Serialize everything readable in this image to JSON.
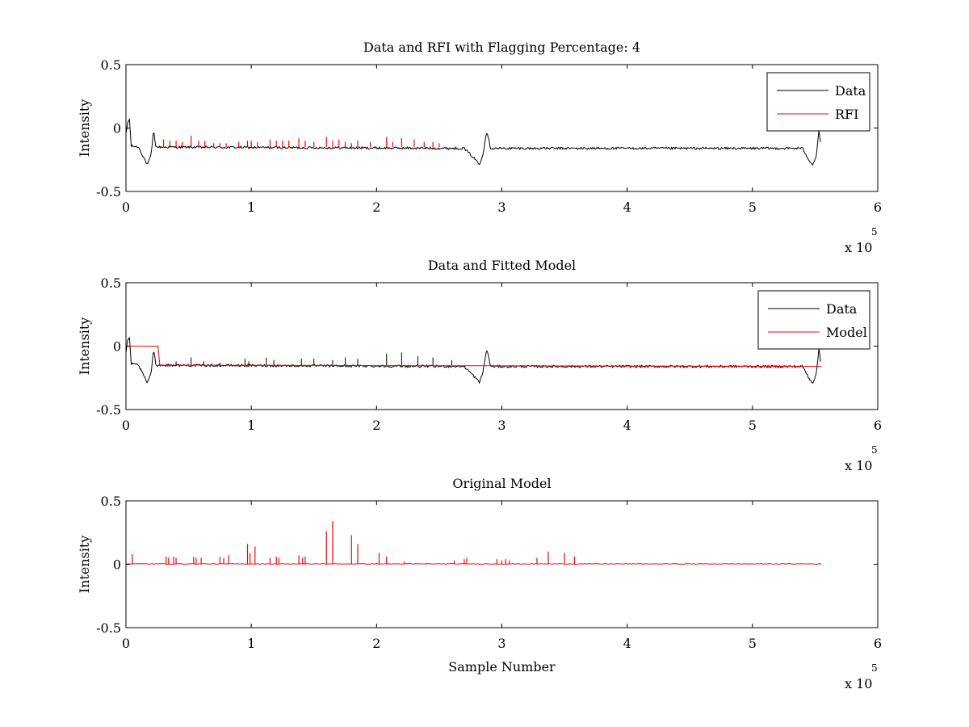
{
  "colors": {
    "data": "#000000",
    "red": "#ff0000",
    "axes": "#000000",
    "background": "#ffffff"
  },
  "axes_common": {
    "xlim": [
      0,
      600000
    ],
    "ylim": [
      -0.5,
      0.5
    ],
    "xticks": [
      0,
      1,
      2,
      3,
      4,
      5,
      6
    ],
    "yticks": [
      0.5,
      0,
      -0.5
    ],
    "ytick_labels": [
      "0.5",
      "0",
      "-0.5"
    ],
    "x_multiplier_prefix": "x 10",
    "x_multiplier_exponent": "5",
    "grid": false
  },
  "chart_data": [
    {
      "type": "line",
      "title": "Data and RFI with Flagging Percentage: 4",
      "xlabel": "",
      "ylabel": "Intensity",
      "legend_position": "top-right",
      "series": [
        {
          "name": "Data",
          "color": "#000000",
          "description_points": [
            [
              0,
              -0.05
            ],
            [
              1500,
              0.05
            ],
            [
              3000,
              0.07
            ],
            [
              4000,
              -0.14
            ],
            [
              10000,
              -0.15
            ],
            [
              15000,
              -0.25
            ],
            [
              17000,
              -0.29
            ],
            [
              20000,
              -0.22
            ],
            [
              22000,
              -0.02
            ],
            [
              24000,
              -0.15
            ],
            [
              270000,
              -0.16
            ],
            [
              280000,
              -0.26
            ],
            [
              282000,
              -0.29
            ],
            [
              285000,
              -0.2
            ],
            [
              288000,
              -0.02
            ],
            [
              291000,
              -0.16
            ],
            [
              540000,
              -0.16
            ],
            [
              545000,
              -0.25
            ],
            [
              548000,
              -0.29
            ],
            [
              551000,
              -0.22
            ],
            [
              553000,
              -0.02
            ],
            [
              555000,
              -0.16
            ]
          ]
        },
        {
          "name": "RFI",
          "color": "#ff0000",
          "spikes": [
            [
              30000,
              -0.09
            ],
            [
              35000,
              -0.1
            ],
            [
              40000,
              -0.1
            ],
            [
              45000,
              -0.11
            ],
            [
              52000,
              -0.06
            ],
            [
              58000,
              -0.1
            ],
            [
              63000,
              -0.1
            ],
            [
              70000,
              -0.12
            ],
            [
              75000,
              -0.12
            ],
            [
              80000,
              -0.12
            ],
            [
              90000,
              -0.11
            ],
            [
              97000,
              -0.1
            ],
            [
              100000,
              -0.1
            ],
            [
              105000,
              -0.11
            ],
            [
              115000,
              -0.09
            ],
            [
              120000,
              -0.1
            ],
            [
              125000,
              -0.1
            ],
            [
              130000,
              -0.1
            ],
            [
              138000,
              -0.08
            ],
            [
              143000,
              -0.1
            ],
            [
              150000,
              -0.11
            ],
            [
              160000,
              -0.07
            ],
            [
              165000,
              -0.1
            ],
            [
              170000,
              -0.09
            ],
            [
              175000,
              -0.11
            ],
            [
              180000,
              -0.12
            ],
            [
              185000,
              -0.1
            ],
            [
              195000,
              -0.11
            ],
            [
              208000,
              -0.07
            ],
            [
              213000,
              -0.11
            ],
            [
              220000,
              -0.08
            ],
            [
              230000,
              -0.09
            ],
            [
              238000,
              -0.11
            ],
            [
              245000,
              -0.11
            ],
            [
              250000,
              -0.12
            ]
          ]
        }
      ]
    },
    {
      "type": "line",
      "title": "Data and Fitted Model",
      "xlabel": "",
      "ylabel": "Intensity",
      "legend_position": "top-right",
      "series": [
        {
          "name": "Data",
          "color": "#000000",
          "description_points": [
            [
              0,
              -0.05
            ],
            [
              1500,
              0.05
            ],
            [
              3000,
              0.07
            ],
            [
              4000,
              -0.14
            ],
            [
              10000,
              -0.15
            ],
            [
              15000,
              -0.25
            ],
            [
              17000,
              -0.29
            ],
            [
              20000,
              -0.22
            ],
            [
              22000,
              -0.02
            ],
            [
              24000,
              -0.15
            ],
            [
              270000,
              -0.16
            ],
            [
              280000,
              -0.26
            ],
            [
              282000,
              -0.29
            ],
            [
              285000,
              -0.2
            ],
            [
              288000,
              -0.02
            ],
            [
              291000,
              -0.16
            ],
            [
              540000,
              -0.16
            ],
            [
              545000,
              -0.25
            ],
            [
              548000,
              -0.29
            ],
            [
              551000,
              -0.22
            ],
            [
              553000,
              -0.02
            ],
            [
              555000,
              -0.16
            ]
          ]
        },
        {
          "name": "Model",
          "color": "#ff0000",
          "description_points": [
            [
              0,
              0.0
            ],
            [
              26000,
              0.0
            ],
            [
              26500,
              -0.15
            ],
            [
              555000,
              -0.16
            ]
          ]
        }
      ]
    },
    {
      "type": "line",
      "title": "Original Model",
      "xlabel": "Sample Number",
      "ylabel": "Intensity",
      "legend_position": "",
      "series": [
        {
          "color": "#ff0000",
          "baseline": 0.0,
          "spikes": [
            [
              5000,
              0.08
            ],
            [
              32000,
              0.06
            ],
            [
              34000,
              0.05
            ],
            [
              38000,
              0.06
            ],
            [
              40000,
              0.05
            ],
            [
              54000,
              0.06
            ],
            [
              56000,
              0.05
            ],
            [
              60000,
              0.05
            ],
            [
              75000,
              0.06
            ],
            [
              78000,
              0.05
            ],
            [
              82000,
              0.07
            ],
            [
              97000,
              0.16
            ],
            [
              99000,
              0.09
            ],
            [
              103000,
              0.14
            ],
            [
              115000,
              0.05
            ],
            [
              120000,
              0.06
            ],
            [
              122000,
              0.05
            ],
            [
              138000,
              0.07
            ],
            [
              141000,
              0.05
            ],
            [
              143000,
              0.06
            ],
            [
              160000,
              0.26
            ],
            [
              165000,
              0.34
            ],
            [
              180000,
              0.23
            ],
            [
              185000,
              0.16
            ],
            [
              202000,
              0.09
            ],
            [
              208000,
              0.06
            ],
            [
              222000,
              0.02
            ],
            [
              240000,
              0.01
            ],
            [
              262000,
              0.03
            ],
            [
              270000,
              0.04
            ],
            [
              272000,
              0.05
            ],
            [
              296000,
              0.04
            ],
            [
              300000,
              0.03
            ],
            [
              303000,
              0.04
            ],
            [
              306000,
              0.03
            ],
            [
              328000,
              0.05
            ],
            [
              337000,
              0.1
            ],
            [
              350000,
              0.09
            ],
            [
              358000,
              0.06
            ]
          ]
        }
      ]
    }
  ]
}
